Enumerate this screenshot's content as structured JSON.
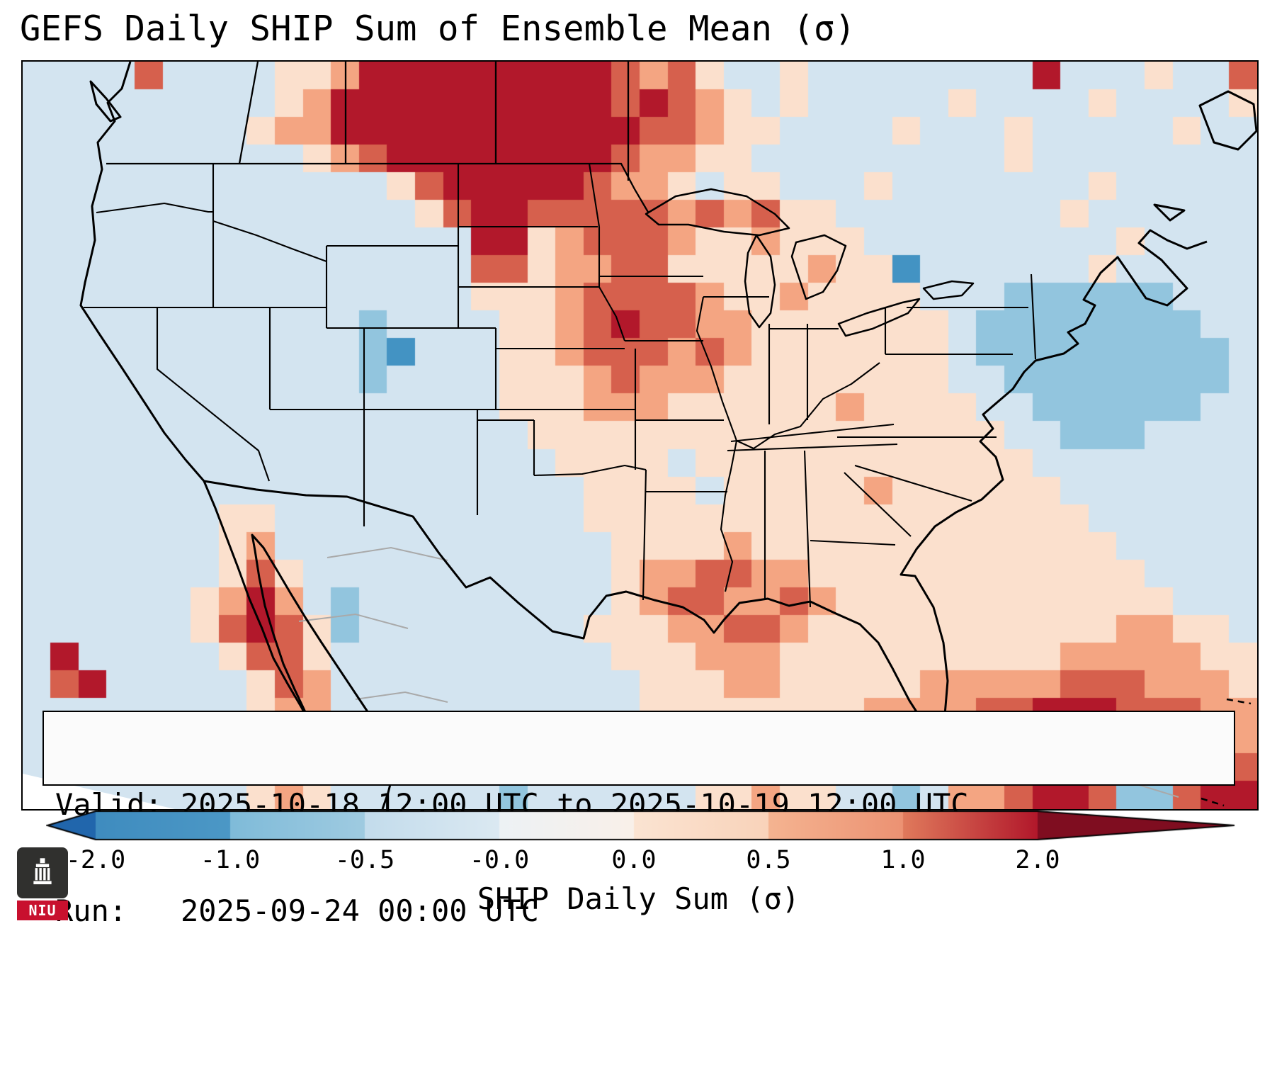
{
  "title": "GEFS Daily SHIP Sum of Ensemble Mean (σ)",
  "info_box": {
    "line1": "Valid: 2025-10-18 12:00 UTC to 2025-10-19 12:00 UTC",
    "line2": "Run:   2025-09-24 00:00 UTC"
  },
  "colorbar": {
    "label": "SHIP Daily Sum (σ)",
    "ticks": [
      "-2.0",
      "-1.0",
      "-0.5",
      "-0.0",
      "0.0",
      "0.5",
      "1.0",
      "2.0"
    ],
    "segment_colors": [
      [
        "#3f8cbf",
        "#4c98c6"
      ],
      [
        "#7fbbd9",
        "#9fcbe1"
      ],
      [
        "#c3dcec",
        "#dbe9f2"
      ],
      [
        "#edf2f5",
        "#f9f0e9"
      ],
      [
        "#fbe4d2",
        "#f9d3ba"
      ],
      [
        "#f5b491",
        "#ec9273"
      ],
      [
        "#e07a5c",
        "#b2182b"
      ]
    ],
    "left_arrow_color": "#2166ac",
    "right_arrow_color": "#7f0d20"
  },
  "logo": {
    "text": "NIU",
    "banner_color": "#c8102e"
  },
  "map": {
    "background": "#d3e4f0",
    "cols": 44,
    "n_rows": 27,
    "palette": {
      "2": "#4393c3",
      "3": "#92c5de",
      "4": "#d3e4f0",
      "5": "#f7f7f7",
      "6": "#fbe0cd",
      "7": "#f4a582",
      "8": "#d6604d",
      "9": "#b2182b"
    },
    "palette_values_sigma": {
      "2": -1.5,
      "3": -0.75,
      "4": -0.25,
      "5": 0.0,
      "6": 0.35,
      "7": 0.75,
      "8": 1.4,
      "9": 2.0
    },
    "grid_rows": [
      "44448444466799999999987864464444444494446448",
      "44444444467999999999989876464444464444644446",
      "44444444677999999999998876644446444644444644",
      "44444444446789999999987766444444444644444444",
      "44444444444446899999877646644464444444644444",
      "44444444444444689988888787866444444446444444",
      "44444444444444449967888766766644444444464444",
      "44444444444444448867788666667662444444644444",
      "44444444444444446667888876676666444333333444",
      "44444444444434444667898877666666643333333344",
      "44444444444432444667888787666666643333333334",
      "44444444444434444666787776666666644333333334",
      "44444444444444444666777666666766664433333344",
      "44444444444444444466666666666666666443334444",
      "44444444444444444446666466666666666644444444",
      "44444444444444444444666646666676666664444444",
      "44444446644444444444666666666666666666444444",
      "44444446744444444444466667666666666666644444",
      "44444446864444444444467788776666666666664444",
      "44444467974344444444467887787666666666666444",
      "44444468986344444444666778876666666666677664",
      "49444446886444444444466677766666666667777766",
      "48944444687444444444446667766666777778887776",
      "44444444677444444444446666666677778899988877",
      "44444444467444444444446666666777789998899887",
      "44444444446444444444446666667777799998899998",
      "54444444676444444344444466766443477899833899"
    ]
  }
}
